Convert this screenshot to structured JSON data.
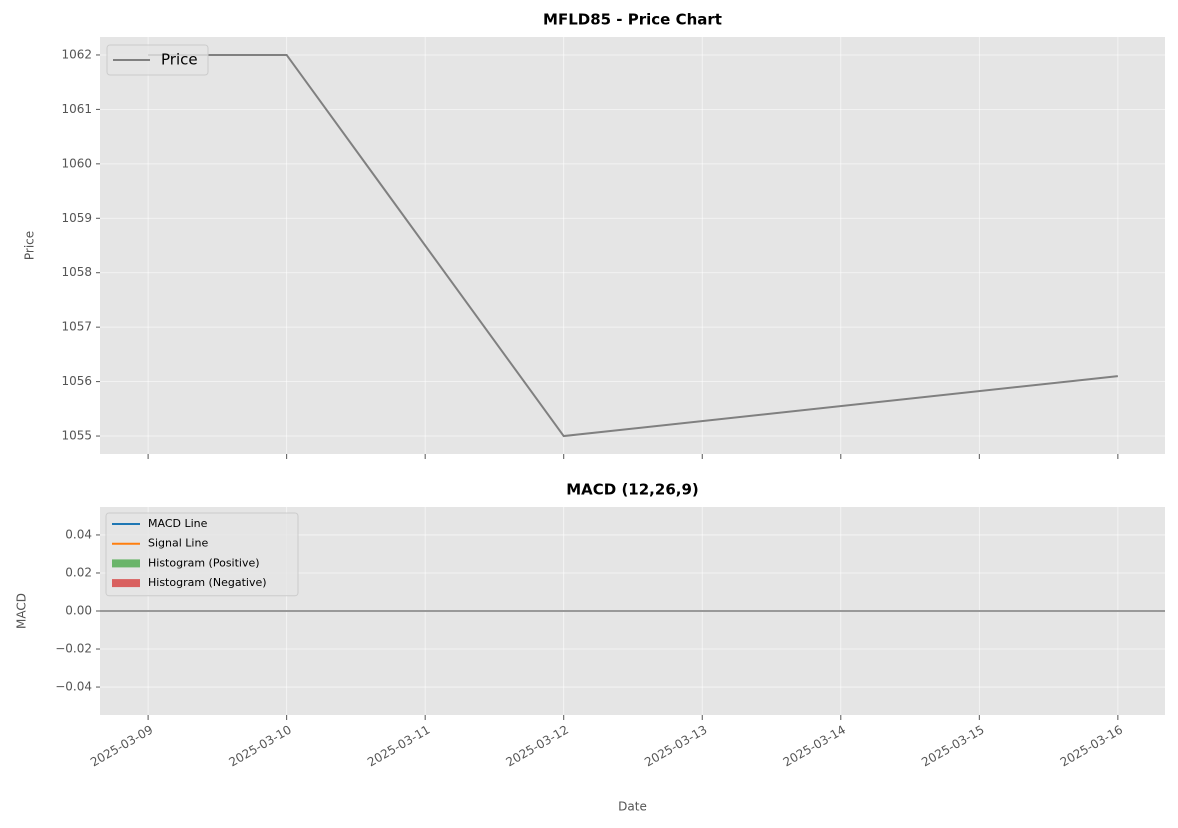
{
  "chart_data": [
    {
      "type": "line",
      "title": "MFLD85 - Price Chart",
      "ylabel": "Price",
      "x": [
        "2025-03-09",
        "2025-03-10",
        "2025-03-12",
        "2025-03-16"
      ],
      "series": [
        {
          "name": "Price",
          "color": "#808080",
          "values": [
            1062,
            1062,
            1055,
            1056.1
          ]
        }
      ],
      "xlim": [
        "2025-03-08T15:40",
        "2025-03-16T08:10"
      ],
      "ylim": [
        1054.67,
        1062.33
      ],
      "yticks": [
        1055,
        1056,
        1057,
        1058,
        1059,
        1060,
        1061,
        1062
      ],
      "grid": true,
      "legend": "upper left"
    },
    {
      "type": "macd",
      "title": "MACD (12,26,9)",
      "ylabel": "MACD",
      "xlabel": "Date",
      "x": [
        "2025-03-09",
        "2025-03-10",
        "2025-03-12",
        "2025-03-16"
      ],
      "series": [
        {
          "name": "MACD Line",
          "type": "line",
          "color": "#1f77b4",
          "values": [
            0,
            0,
            0,
            0
          ]
        },
        {
          "name": "Signal Line",
          "type": "line",
          "color": "#ff7f0e",
          "values": [
            0,
            0,
            0,
            0
          ]
        },
        {
          "name": "Histogram (Positive)",
          "type": "bar",
          "color": "#6ab56a",
          "values": [
            0,
            0,
            0,
            0
          ]
        },
        {
          "name": "Histogram (Negative)",
          "type": "bar",
          "color": "#d9605f",
          "values": [
            0,
            0,
            0,
            0
          ]
        }
      ],
      "hline": 0,
      "hline_color": "#999999",
      "xlim": [
        "2025-03-08T15:40",
        "2025-03-16T08:10"
      ],
      "xticks": [
        "2025-03-09",
        "2025-03-10",
        "2025-03-11",
        "2025-03-12",
        "2025-03-13",
        "2025-03-14",
        "2025-03-15",
        "2025-03-16"
      ],
      "ylim": [
        -0.0547,
        0.0547
      ],
      "yticks": [
        {
          "value": -0.04,
          "label": "−0.04"
        },
        {
          "value": -0.02,
          "label": "−0.02"
        },
        {
          "value": 0,
          "label": "0.00"
        },
        0.02,
        0.04
      ],
      "grid": true,
      "legend": "upper left"
    }
  ]
}
